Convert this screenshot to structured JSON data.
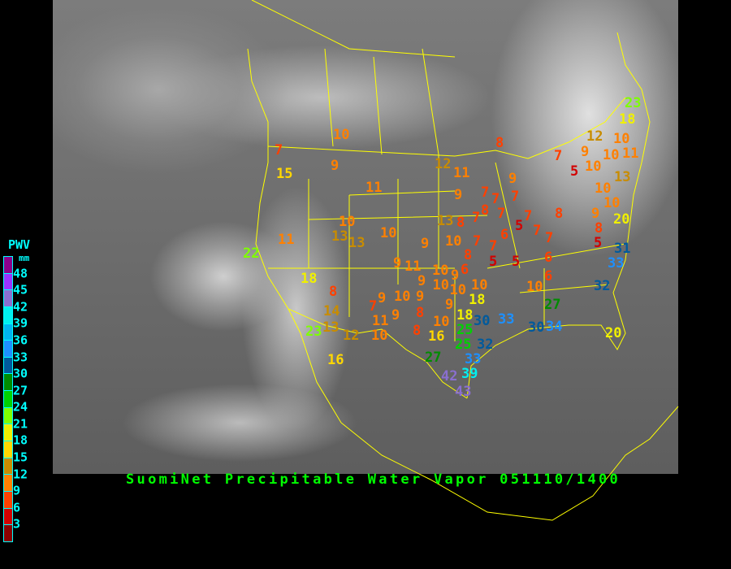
{
  "title": "SuomiNet Precipitable Water Vapor 051110/1400",
  "legend": {
    "title": "PWV",
    "unit": "mm",
    "labels": [
      "48",
      "45",
      "42",
      "39",
      "36",
      "33",
      "30",
      "27",
      "24",
      "21",
      "18",
      "15",
      "12",
      "9",
      "6",
      "3"
    ],
    "colors_top_to_bottom": [
      "#8b008b",
      "#9932ff",
      "#8a6fd0",
      "#00f0f0",
      "#00b4f0",
      "#1e90ff",
      "#005a9c",
      "#008c00",
      "#00d200",
      "#7fff00",
      "#f0f000",
      "#ffd700",
      "#c88c00",
      "#ff8000",
      "#ff4000",
      "#d20000",
      "#8b0000"
    ]
  },
  "map": {
    "background": "GOES infrared satellite imagery",
    "border_color": "#ffff00"
  },
  "stations": [
    7,
    15,
    10,
    9,
    11,
    11,
    22,
    18,
    8,
    12,
    11,
    7,
    9,
    5,
    12,
    10,
    9,
    10,
    11,
    10,
    18,
    23,
    13,
    9,
    7,
    7,
    7,
    7,
    8,
    7,
    13,
    8,
    5,
    7,
    7,
    8,
    6,
    7,
    9,
    10,
    7,
    7,
    8,
    5,
    5,
    6,
    6,
    6,
    9,
    8,
    5,
    10,
    10,
    20,
    31,
    33,
    32,
    10,
    10,
    13,
    13,
    10,
    9,
    11,
    10,
    9,
    9,
    10,
    10,
    10,
    8,
    9,
    7,
    10,
    9,
    18,
    9,
    14,
    9,
    8,
    10,
    18,
    30,
    33,
    13,
    23,
    12,
    11,
    10,
    8,
    16,
    25,
    25,
    32,
    27,
    33,
    16,
    42,
    39,
    43,
    27,
    30,
    34,
    20
  ]
}
